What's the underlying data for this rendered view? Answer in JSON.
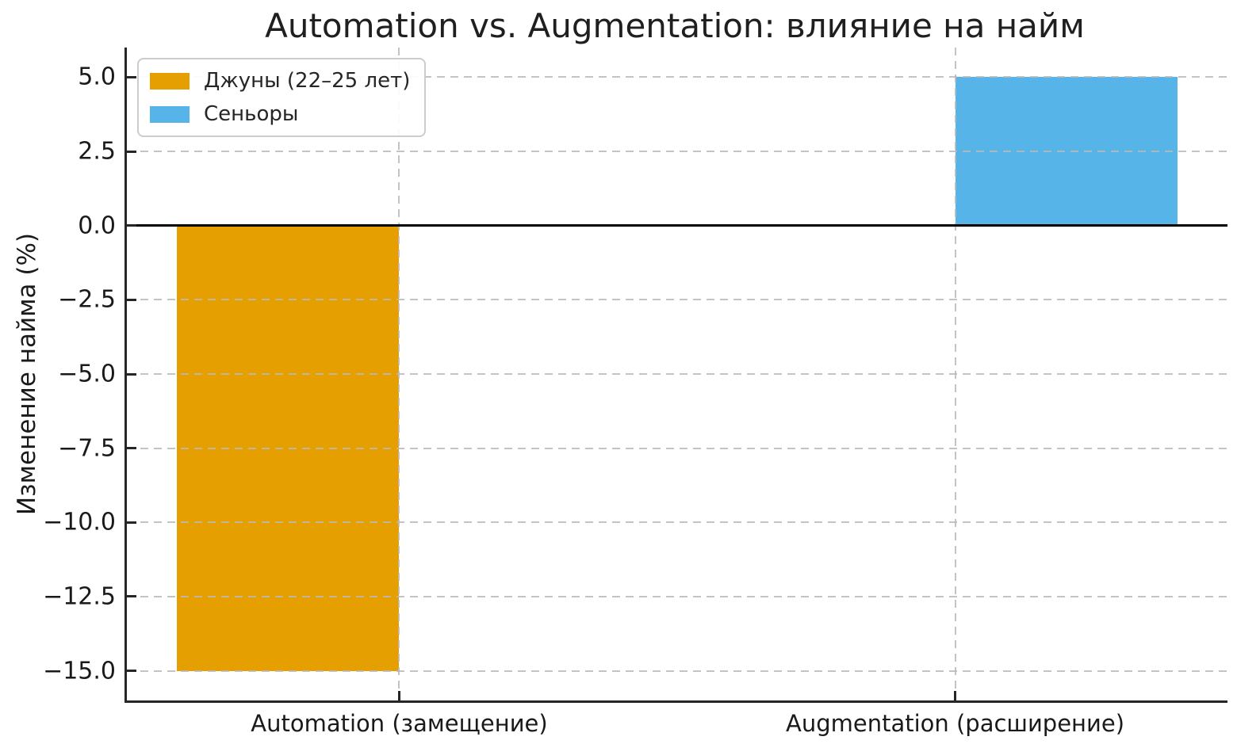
{
  "chart_data": {
    "type": "bar",
    "title": "Automation vs. Augmentation: влияние на найм",
    "ylabel": "Изменение найма (%)",
    "xlabel": "",
    "categories": [
      "Automation (замещение)",
      "Augmentation (расширение)"
    ],
    "series": [
      {
        "name": "Джуны (22–25 лет)",
        "color": "#E69F00",
        "values": [
          -15,
          0
        ]
      },
      {
        "name": "Сеньоры",
        "color": "#56B4E9",
        "values": [
          0,
          5
        ]
      }
    ],
    "yticks": [
      5.0,
      2.5,
      0.0,
      -2.5,
      -5.0,
      -7.5,
      -10.0,
      -12.5,
      -15.0
    ],
    "ylim": [
      -16,
      6
    ],
    "xlim": [
      -0.49,
      1.49
    ],
    "category_positions": [
      0,
      1
    ],
    "bar_width": 0.4,
    "grid": "dashed",
    "grid_above_bars": true,
    "zero_line": 0,
    "legend_position": "upper left",
    "spines": [
      "left",
      "bottom"
    ],
    "tick_direction": "in",
    "colors": {
      "junior_bar": "#E69F00",
      "senior_bar": "#56B4E9",
      "grid": "#b9b9b9",
      "spine": "#262626",
      "text": "#1a1a1a"
    }
  }
}
